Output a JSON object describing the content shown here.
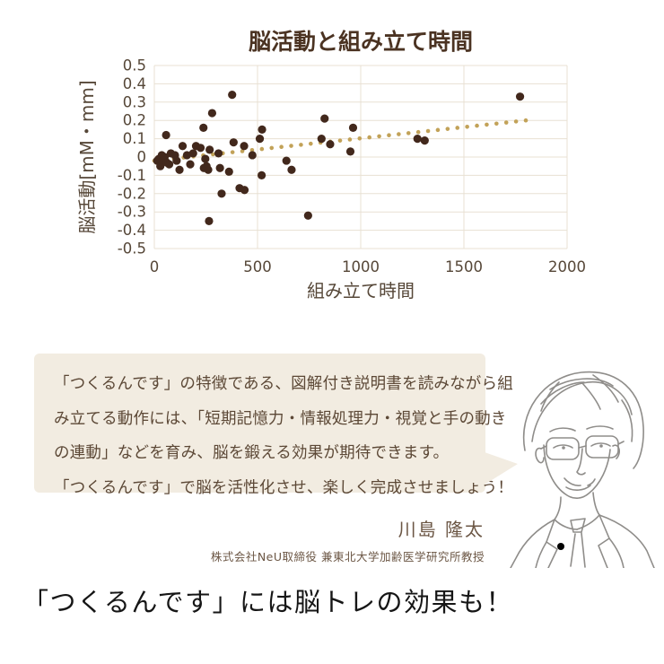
{
  "chart_data": {
    "type": "scatter",
    "title": "脳活動と組み立て時間",
    "xlabel": "組み立て時間",
    "ylabel": "脳活動[mM・mm]",
    "xlim": [
      0,
      2000
    ],
    "ylim": [
      -0.5,
      0.5
    ],
    "x_ticks": [
      0,
      500,
      1000,
      1500,
      2000
    ],
    "y_ticks": [
      0.5,
      0.4,
      0.3,
      0.2,
      0.1,
      0,
      -0.1,
      -0.2,
      -0.3,
      -0.4,
      -0.5
    ],
    "grid": true,
    "legend": "none",
    "points": [
      [
        14,
        -0.02
      ],
      [
        22,
        -0.01
      ],
      [
        29,
        -0.05
      ],
      [
        36,
        0.01
      ],
      [
        43,
        -0.02
      ],
      [
        50,
        0.0
      ],
      [
        57,
        0.12
      ],
      [
        60,
        -0.03
      ],
      [
        72,
        -0.04
      ],
      [
        80,
        0.02
      ],
      [
        100,
        0.01
      ],
      [
        108,
        -0.02
      ],
      [
        122,
        -0.07
      ],
      [
        137,
        0.06
      ],
      [
        158,
        0.01
      ],
      [
        174,
        -0.04
      ],
      [
        188,
        0.02
      ],
      [
        202,
        0.06
      ],
      [
        224,
        0.05
      ],
      [
        238,
        0.16
      ],
      [
        240,
        -0.06
      ],
      [
        247,
        -0.01
      ],
      [
        253,
        -0.05
      ],
      [
        261,
        -0.07
      ],
      [
        265,
        -0.35
      ],
      [
        268,
        0.04
      ],
      [
        280,
        0.24
      ],
      [
        311,
        0.02
      ],
      [
        318,
        -0.06
      ],
      [
        326,
        -0.2
      ],
      [
        362,
        -0.08
      ],
      [
        377,
        0.34
      ],
      [
        384,
        0.08
      ],
      [
        413,
        -0.17
      ],
      [
        435,
        0.06
      ],
      [
        437,
        -0.18
      ],
      [
        475,
        0.01
      ],
      [
        511,
        0.1
      ],
      [
        522,
        0.15
      ],
      [
        520,
        -0.1
      ],
      [
        640,
        -0.02
      ],
      [
        665,
        -0.07
      ],
      [
        745,
        -0.32
      ],
      [
        810,
        0.1
      ],
      [
        825,
        0.21
      ],
      [
        852,
        0.07
      ],
      [
        950,
        0.03
      ],
      [
        963,
        0.16
      ],
      [
        1275,
        0.1
      ],
      [
        1310,
        0.09
      ],
      [
        1772,
        0.33
      ]
    ],
    "trend": {
      "style": "dotted",
      "x0": 0,
      "y0": -0.02,
      "x1": 1800,
      "y1": 0.2
    },
    "colors": {
      "point": "#42281c",
      "trend": "#c2a258",
      "grid": "#e8e0d3",
      "axis_text": "#564738",
      "title_text": "#4b3322"
    }
  },
  "speech": {
    "lines": [
      "「つくるんです」の特徴である、図解付き説明書を読みながら組",
      "み立てる動作には、「短期記憶力・情報処理力・視覚と手の動き",
      "の連動」などを育み、脳を鍛える効果が期待できます。",
      "「つくるんです」で脳を活性化させ、楽しく完成させましょう！"
    ]
  },
  "credit": {
    "name": "川島 隆太",
    "affiliation": "株式会社NeU取締役 兼東北大学加齢医学研究所教授"
  },
  "headline": "「つくるんです」には脳トレの効果も！"
}
